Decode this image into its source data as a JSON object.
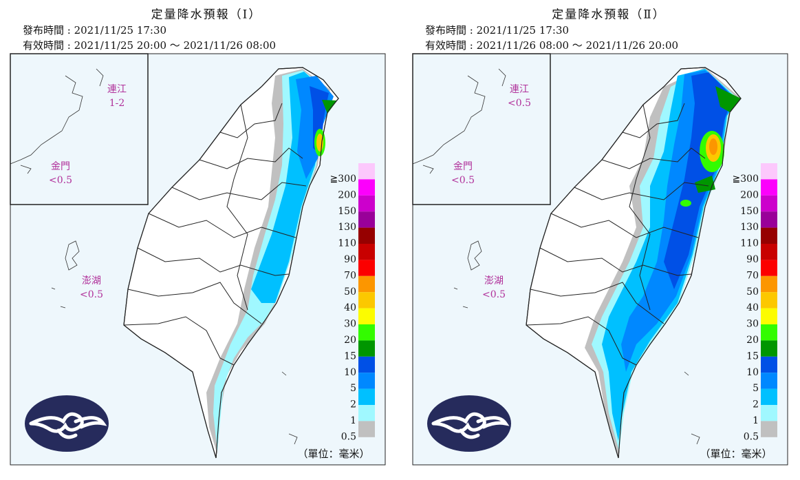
{
  "panels": [
    {
      "title": "定量降水預報（Ⅰ）",
      "issued": "發布時間 : 2021/11/25 17:30",
      "valid": "有效時間 : 2021/11/25 20:00 ～ 2021/11/26 08:00",
      "islands": [
        {
          "name": "連江",
          "value": "1-2"
        },
        {
          "name": "金門",
          "value": "<0.5"
        },
        {
          "name": "澎湖",
          "value": "<0.5"
        }
      ]
    },
    {
      "title": "定量降水預報（Ⅱ）",
      "issued": "發布時間 : 2021/11/25 17:30",
      "valid": "有效時間 : 2021/11/26 08:00 ～ 2021/11/26 20:00",
      "islands": [
        {
          "name": "連江",
          "value": "<0.5"
        },
        {
          "name": "金門",
          "value": "<0.5"
        },
        {
          "name": "澎湖",
          "value": "<0.5"
        }
      ]
    }
  ],
  "legend": {
    "labels": [
      "≧300",
      "200",
      "150",
      "130",
      "110",
      "90",
      "70",
      "50",
      "40",
      "30",
      "20",
      "15",
      "10",
      "5",
      "2",
      "1",
      "0.5"
    ],
    "colors": [
      "#fcc8fc",
      "#fc00fc",
      "#cc00cc",
      "#990099",
      "#960000",
      "#c80000",
      "#fc0000",
      "#fc9600",
      "#fcc800",
      "#fcfc00",
      "#33fc00",
      "#009600",
      "#0050e6",
      "#0088ff",
      "#00c0ff",
      "#a0f8ff",
      "#c0c0c0"
    ]
  },
  "unit": "（單位：毫米）"
}
